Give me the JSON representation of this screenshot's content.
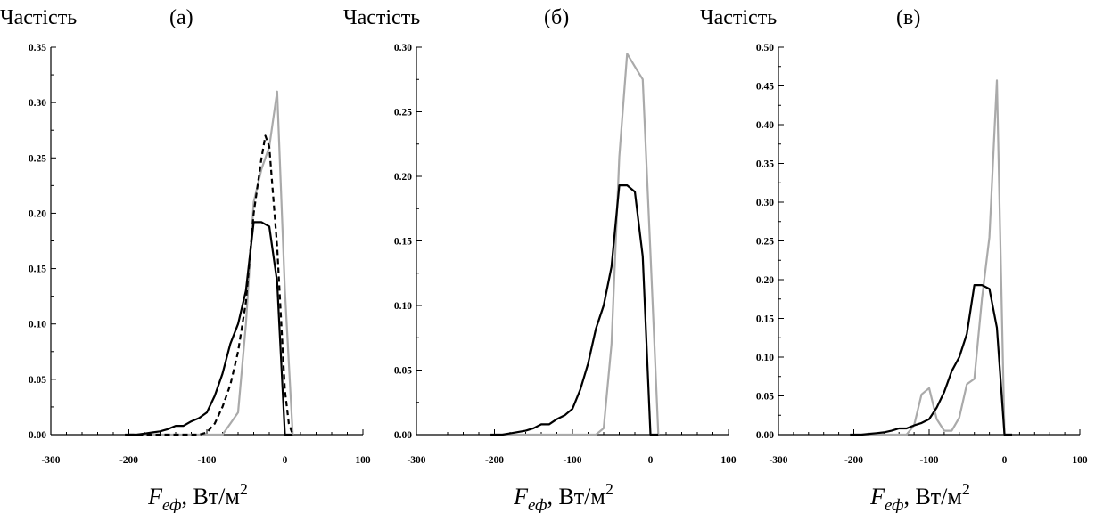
{
  "chart_data": [
    {
      "type": "line",
      "panel_label": "(а)",
      "ylabel": "Частість",
      "xlabel_symbol": "F",
      "xlabel_subscript": "еф",
      "xlabel_unit": ", Вт/м",
      "xlabel_unit_power": "2",
      "xlim": [
        -300,
        100
      ],
      "ylim": [
        0,
        0.35
      ],
      "x_ticks": [
        "-300",
        "-200",
        "-100",
        "0",
        "100"
      ],
      "y_ticks": [
        "0.00",
        "0.05",
        "0.10",
        "0.15",
        "0.20",
        "0.25",
        "0.30",
        "0.35"
      ],
      "grid": false,
      "series": [
        {
          "color": "#000000",
          "dash": "solid",
          "x": [
            -205,
            -190,
            -180,
            -170,
            -160,
            -150,
            -140,
            -130,
            -120,
            -110,
            -100,
            -90,
            -80,
            -70,
            -60,
            -50,
            -40,
            -30,
            -20,
            -10,
            0,
            10
          ],
          "y": [
            0.0,
            0.0,
            0.001,
            0.002,
            0.003,
            0.005,
            0.008,
            0.008,
            0.012,
            0.015,
            0.02,
            0.035,
            0.055,
            0.082,
            0.1,
            0.13,
            0.192,
            0.192,
            0.188,
            0.138,
            0.0,
            0.0
          ]
        },
        {
          "color": "#000000",
          "dash": "dashed",
          "x": [
            -200,
            -150,
            -120,
            -110,
            -100,
            -90,
            -80,
            -70,
            -60,
            -50,
            -40,
            -30,
            -25,
            -20,
            -10,
            0,
            5,
            10
          ],
          "y": [
            0.0,
            0.0,
            0.0,
            0.0,
            0.002,
            0.01,
            0.025,
            0.045,
            0.075,
            0.12,
            0.2,
            0.25,
            0.27,
            0.26,
            0.17,
            0.04,
            0.01,
            0.0
          ]
        },
        {
          "color": "#aaaaaa",
          "dash": "solid",
          "x": [
            -200,
            -100,
            -80,
            -70,
            -60,
            -50,
            -40,
            -30,
            -20,
            -10,
            0,
            10
          ],
          "y": [
            0.0,
            0.0,
            0.0,
            0.01,
            0.02,
            0.1,
            0.21,
            0.24,
            0.26,
            0.31,
            0.13,
            0.0
          ]
        }
      ]
    },
    {
      "type": "line",
      "panel_label": "(б)",
      "ylabel": "Частість",
      "xlabel_symbol": "F",
      "xlabel_subscript": "еф",
      "xlabel_unit": ", Вт/м",
      "xlabel_unit_power": "2",
      "xlim": [
        -300,
        100
      ],
      "ylim": [
        0,
        0.3
      ],
      "x_ticks": [
        "-300",
        "-200",
        "-100",
        "0",
        "100"
      ],
      "y_ticks": [
        "0.00",
        "0.05",
        "0.10",
        "0.15",
        "0.20",
        "0.25",
        "0.30"
      ],
      "grid": false,
      "series": [
        {
          "color": "#000000",
          "dash": "solid",
          "x": [
            -205,
            -190,
            -180,
            -170,
            -160,
            -150,
            -140,
            -130,
            -120,
            -110,
            -100,
            -90,
            -80,
            -70,
            -60,
            -50,
            -40,
            -30,
            -20,
            -10,
            0,
            10
          ],
          "y": [
            0.0,
            0.0,
            0.001,
            0.002,
            0.003,
            0.005,
            0.008,
            0.008,
            0.012,
            0.015,
            0.02,
            0.035,
            0.055,
            0.082,
            0.1,
            0.13,
            0.193,
            0.193,
            0.188,
            0.138,
            0.0,
            0.0
          ]
        },
        {
          "color": "#aaaaaa",
          "dash": "solid",
          "x": [
            -200,
            -90,
            -70,
            -60,
            -50,
            -40,
            -30,
            -20,
            -10,
            0,
            10
          ],
          "y": [
            0.0,
            0.0,
            0.0,
            0.005,
            0.07,
            0.215,
            0.295,
            0.285,
            0.275,
            0.14,
            0.0
          ]
        }
      ]
    },
    {
      "type": "line",
      "panel_label": "(в)",
      "ylabel": "Частість",
      "xlabel_symbol": "F",
      "xlabel_subscript": "еф",
      "xlabel_unit": ", Вт/м",
      "xlabel_unit_power": "2",
      "xlim": [
        -300,
        100
      ],
      "ylim": [
        0,
        0.5
      ],
      "x_ticks": [
        "-300",
        "-200",
        "-100",
        "0",
        "100"
      ],
      "y_ticks": [
        "0.00",
        "0.05",
        "0.10",
        "0.15",
        "0.20",
        "0.25",
        "0.30",
        "0.35",
        "0.40",
        "0.45",
        "0.50"
      ],
      "grid": false,
      "series": [
        {
          "color": "#000000",
          "dash": "solid",
          "x": [
            -205,
            -190,
            -180,
            -170,
            -160,
            -150,
            -140,
            -130,
            -120,
            -110,
            -100,
            -90,
            -80,
            -70,
            -60,
            -50,
            -40,
            -30,
            -20,
            -10,
            0,
            10
          ],
          "y": [
            0.0,
            0.0,
            0.001,
            0.002,
            0.003,
            0.005,
            0.008,
            0.008,
            0.012,
            0.015,
            0.02,
            0.035,
            0.055,
            0.082,
            0.1,
            0.13,
            0.193,
            0.193,
            0.188,
            0.138,
            0.0,
            0.0
          ]
        },
        {
          "color": "#aaaaaa",
          "dash": "solid",
          "x": [
            -200,
            -130,
            -120,
            -110,
            -100,
            -90,
            -80,
            -70,
            -60,
            -50,
            -40,
            -30,
            -20,
            -10,
            0,
            10
          ],
          "y": [
            0.0,
            0.0,
            0.012,
            0.052,
            0.06,
            0.02,
            0.005,
            0.005,
            0.022,
            0.065,
            0.072,
            0.175,
            0.255,
            0.457,
            0.0,
            0.0
          ]
        }
      ]
    }
  ]
}
